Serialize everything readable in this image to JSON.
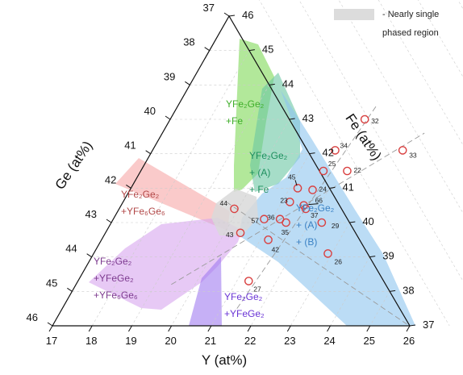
{
  "chart_data": {
    "type": "scatter",
    "subtype": "ternary",
    "axes": {
      "Y": {
        "label": "Y (at%)",
        "ticks": [
          17,
          18,
          19,
          20,
          21,
          22,
          23,
          24,
          25,
          26
        ]
      },
      "Fe": {
        "label": "Fe (at%)",
        "ticks": [
          37,
          38,
          39,
          40,
          41,
          42,
          43,
          44,
          45,
          46
        ]
      },
      "Ge": {
        "label": "Ge (at%)",
        "ticks": [
          37,
          38,
          39,
          40,
          41,
          42,
          43,
          44,
          45,
          46
        ]
      }
    },
    "legend": {
      "label": "- Nearly single phased region",
      "position": "top-right",
      "color": "#dcdcdc"
    },
    "regions": [
      {
        "name": "YFe2Ge2 + Fe",
        "label_lines": [
          "YFe₂Ge₂",
          "+Fe"
        ],
        "color": "#7ed957",
        "label_color": "#3fae2a"
      },
      {
        "name": "YFe2Ge2 + (A) + Fe",
        "label_lines": [
          "YFe₂Ge₂",
          "+ (A)",
          "+ Fe"
        ],
        "color": "#6bc6a3",
        "label_color": "#1e8f5e"
      },
      {
        "name": "YFe2Ge2 + (A) + (B)",
        "label_lines": [
          "YFe₂Ge₂",
          "+ (A)",
          "+ (B)"
        ],
        "color": "#8ec5ee",
        "label_color": "#3b82c4"
      },
      {
        "name": "YFe2Ge2 + YFe6Ge6",
        "label_lines": [
          "YFe₂Ge₂",
          "+YFe₆Ge₆"
        ],
        "color": "#f6a6a6",
        "label_color": "#b24848"
      },
      {
        "name": "YFe2Ge2 + YFeGe2 + YFe6Ge6",
        "label_lines": [
          "YFe₂Ge₂",
          "+YFeGe₂",
          "+YFe₆Ge₆"
        ],
        "color": "#d7a5ee",
        "label_color": "#7d3b8f"
      },
      {
        "name": "YFe2Ge2 + YFeGe2",
        "label_lines": [
          "YFe₂Ge₂",
          "+YFeGe₂"
        ],
        "color": "#a07cf0",
        "label_color": "#6a34d6"
      },
      {
        "name": "Nearly single phased region",
        "label_lines": [],
        "color": "#d9d9d9",
        "label_color": "#888888"
      }
    ],
    "points": [
      {
        "label": "32",
        "Y": 21.9,
        "Fe": 43.0
      },
      {
        "label": "33",
        "Y": 23.3,
        "Fe": 42.1
      },
      {
        "label": "34",
        "Y": 21.6,
        "Fe": 42.1
      },
      {
        "label": "22",
        "Y": 22.2,
        "Fe": 41.5
      },
      {
        "label": "25",
        "Y": 21.6,
        "Fe": 41.5
      },
      {
        "label": "44",
        "Y": 19.9,
        "Fe": 40.4
      },
      {
        "label": "45",
        "Y": 21.2,
        "Fe": 41.0
      },
      {
        "label": "23",
        "Y": 21.2,
        "Fe": 40.6
      },
      {
        "label": "24",
        "Y": 21.6,
        "Fe": 40.95
      },
      {
        "label": "66",
        "Y": 21.6,
        "Fe": 40.5
      },
      {
        "label": "37",
        "Y": 21.7,
        "Fe": 40.4
      },
      {
        "label": "29",
        "Y": 22.3,
        "Fe": 40.0
      },
      {
        "label": "36",
        "Y": 21.2,
        "Fe": 40.1
      },
      {
        "label": "35",
        "Y": 21.4,
        "Fe": 40.0
      },
      {
        "label": "26",
        "Y": 22.9,
        "Fe": 39.1
      },
      {
        "label": "57",
        "Y": 20.8,
        "Fe": 40.1
      },
      {
        "label": "42",
        "Y": 21.2,
        "Fe": 39.5
      },
      {
        "label": "43",
        "Y": 20.4,
        "Fe": 39.7
      },
      {
        "label": "27",
        "Y": 21.3,
        "Fe": 38.3
      }
    ]
  }
}
